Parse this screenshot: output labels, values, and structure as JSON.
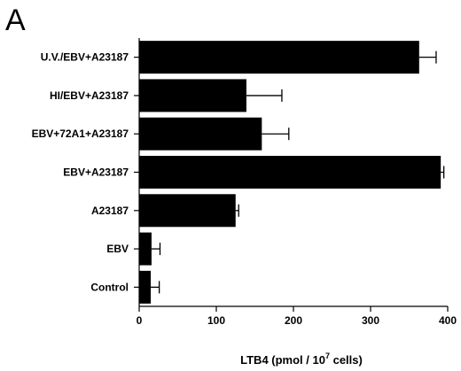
{
  "panel_label": "A",
  "chart_data": {
    "type": "bar",
    "orientation": "horizontal",
    "categories": [
      "U.V./EBV+A23187",
      "HI/EBV+A23187",
      "EBV+72A1+A23187",
      "EBV+A23187",
      "A23187",
      "EBV",
      "Control"
    ],
    "values": [
      363,
      139,
      159,
      391,
      125,
      16,
      15
    ],
    "errors": [
      22,
      46,
      35,
      4,
      4,
      11,
      11
    ],
    "xlim": [
      0,
      400
    ],
    "xticks": [
      0,
      100,
      200,
      300,
      400
    ],
    "xlabel": {
      "prefix": "LTB4 (pmol / 10",
      "superscript": "7",
      "suffix": " cells)"
    },
    "ylabel": "",
    "bar_color": "#000000"
  }
}
